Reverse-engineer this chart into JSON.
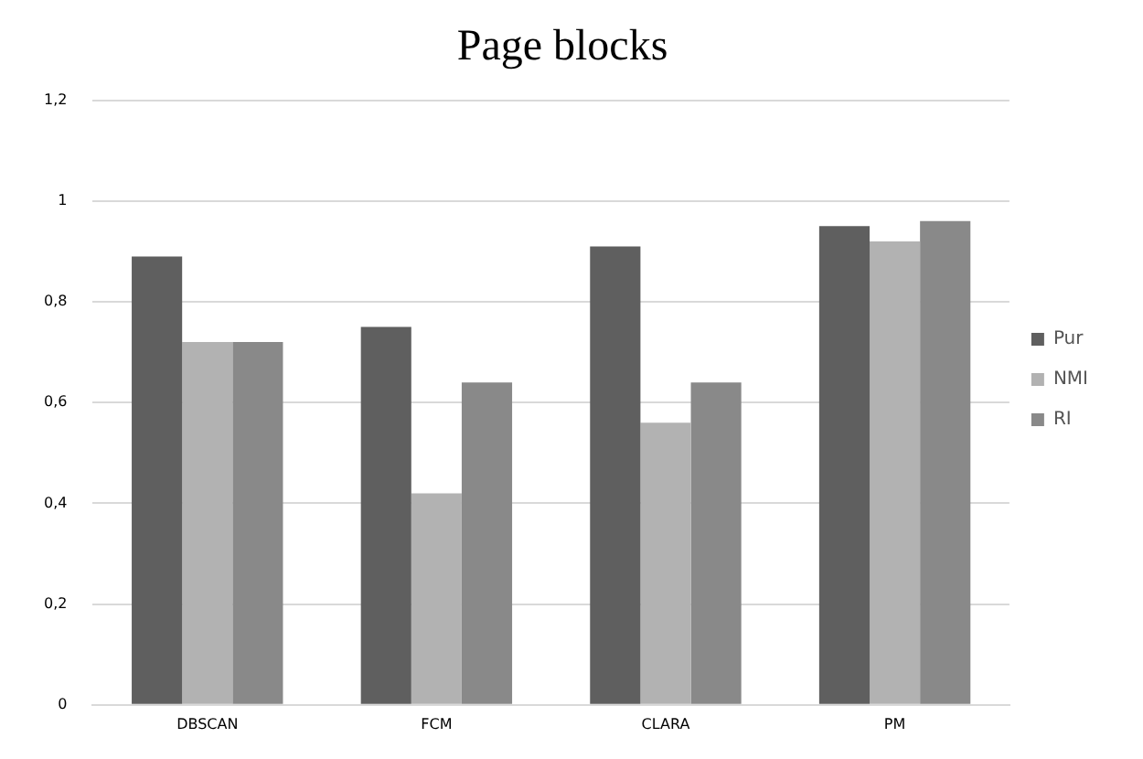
{
  "chart_data": {
    "type": "bar",
    "title": "Page blocks",
    "categories": [
      "DBSCAN",
      "FCM",
      "CLARA",
      "PM"
    ],
    "series": [
      {
        "name": "Pur",
        "color": "#5f5f5f",
        "values": [
          0.89,
          0.75,
          0.91,
          0.95
        ]
      },
      {
        "name": "NMI",
        "color": "#b2b2b2",
        "values": [
          0.72,
          0.42,
          0.56,
          0.92
        ]
      },
      {
        "name": "RI",
        "color": "#898989",
        "values": [
          0.72,
          0.64,
          0.64,
          0.96
        ]
      }
    ],
    "ylim": [
      0,
      1.2
    ],
    "yticks": [
      0,
      {
        "value": 0.2,
        "label": "0,2"
      },
      {
        "value": 0.4,
        "label": "0,4"
      },
      {
        "value": 0.6,
        "label": "0,6"
      },
      {
        "value": 0.8,
        "label": "0,8"
      },
      1,
      {
        "value": 1.2,
        "label": "1,2"
      }
    ],
    "grid": "y",
    "legend": "right"
  }
}
